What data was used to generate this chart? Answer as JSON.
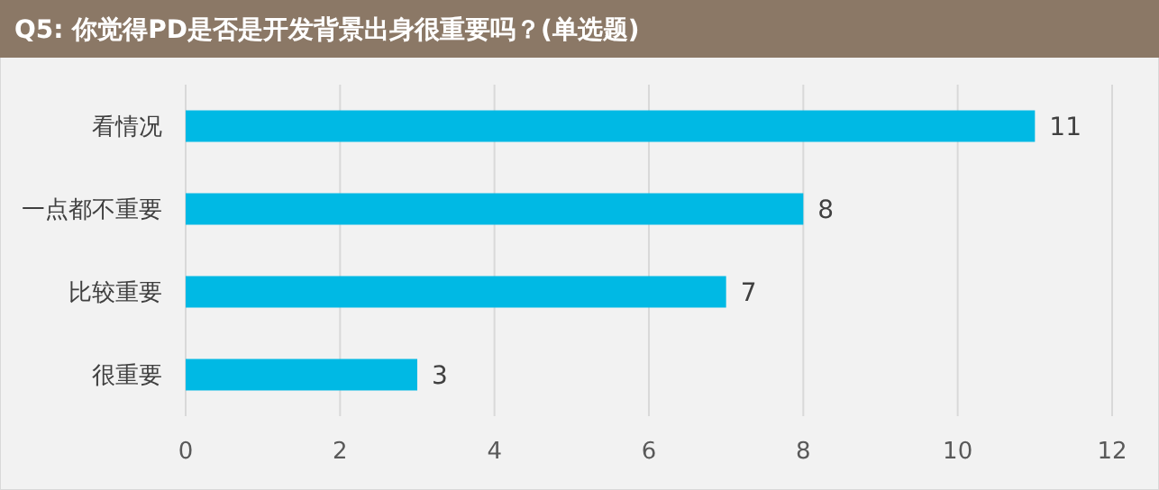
{
  "chart_data": {
    "type": "bar",
    "orientation": "horizontal",
    "title": "Q5: 你觉得PD是否是开发背景出身很重要吗？(单选题)",
    "categories": [
      "看情况",
      "一点都不重要",
      "比较重要",
      "很重要"
    ],
    "values": [
      11,
      8,
      7,
      3
    ],
    "color": "#00b9e4",
    "xlim": [
      0,
      12
    ],
    "xticks": [
      0,
      2,
      4,
      6,
      8,
      10,
      12
    ],
    "grid": "x",
    "data_labels": true
  }
}
